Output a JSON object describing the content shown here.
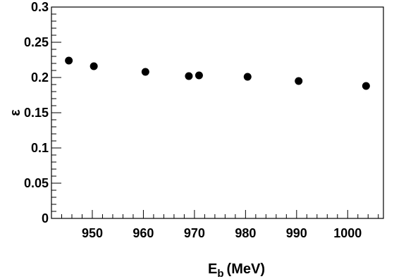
{
  "chart_data": {
    "type": "scatter",
    "title": "",
    "xlabel": "(MeV)",
    "xlabel_symbol": "E",
    "xlabel_subscript": "b",
    "ylabel": "ε",
    "xlim": [
      942,
      1007
    ],
    "ylim": [
      0,
      0.3
    ],
    "x_ticks": [
      950,
      960,
      970,
      980,
      990,
      1000
    ],
    "x_tick_labels": [
      "950",
      "960",
      "970",
      "980",
      "990",
      "1000"
    ],
    "y_ticks": [
      0,
      0.05,
      0.1,
      0.15,
      0.2,
      0.25,
      0.3
    ],
    "y_tick_labels": [
      "0",
      "0.05",
      "0.1",
      "0.15",
      "0.2",
      "0.25",
      "0.3"
    ],
    "grid": false,
    "marker_color": "#000000",
    "series": [
      {
        "x": [
          945.4,
          950.3,
          960.4,
          968.9,
          970.9,
          980.4,
          990.4,
          1003.6
        ],
        "y": [
          0.224,
          0.216,
          0.208,
          0.202,
          0.203,
          0.201,
          0.195,
          0.188
        ]
      }
    ]
  }
}
